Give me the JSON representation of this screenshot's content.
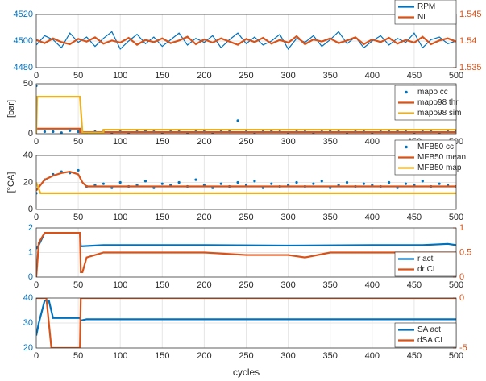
{
  "chart_data": [
    {
      "type": "line",
      "xlim": [
        0,
        500
      ],
      "xticks": [
        0,
        50,
        100,
        150,
        200,
        250,
        300,
        350,
        400,
        450,
        500
      ],
      "ylim": [
        4480,
        4520
      ],
      "yticks": [
        4480,
        4500,
        4520
      ],
      "y2lim": [
        1.535,
        1.545
      ],
      "y2ticks": [
        1.535,
        1.54,
        1.545
      ],
      "ycolor": "#0072bd",
      "y2color": "#d95319",
      "grid": true,
      "legend": "upper right",
      "x": [
        0,
        10,
        20,
        30,
        40,
        50,
        60,
        70,
        80,
        90,
        100,
        110,
        120,
        130,
        140,
        150,
        160,
        170,
        180,
        190,
        200,
        210,
        220,
        230,
        240,
        250,
        260,
        270,
        280,
        290,
        300,
        310,
        320,
        330,
        340,
        350,
        360,
        370,
        380,
        390,
        400,
        410,
        420,
        430,
        440,
        450,
        460,
        470,
        480,
        490,
        500
      ],
      "series": [
        {
          "name": "RPM",
          "color": "#0072bd",
          "values": [
            4497,
            4504,
            4501,
            4495,
            4506,
            4499,
            4503,
            4496,
            4502,
            4507,
            4494,
            4500,
            4505,
            4498,
            4503,
            4496,
            4501,
            4506,
            4497,
            4502,
            4499,
            4504,
            4495,
            4501,
            4506,
            4498,
            4503,
            4497,
            4500,
            4505,
            4494,
            4502,
            4499,
            4504,
            4496,
            4501,
            4507,
            4498,
            4503,
            4495,
            4500,
            4504,
            4497,
            4502,
            4499,
            4506,
            4495,
            4501,
            4503,
            4498,
            4500
          ]
        },
        {
          "name": "NL",
          "color": "#d95319",
          "axis": "y2",
          "values": [
            1.5402,
            1.5396,
            1.5405,
            1.5398,
            1.5394,
            1.5404,
            1.5399,
            1.5407,
            1.5395,
            1.5401,
            1.5397,
            1.5406,
            1.5393,
            1.5402,
            1.5398,
            1.5405,
            1.5396,
            1.5401,
            1.5408,
            1.5394,
            1.5403,
            1.5397,
            1.5405,
            1.5399,
            1.5393,
            1.5404,
            1.5398,
            1.5406,
            1.5395,
            1.5402,
            1.5397,
            1.5409,
            1.5394,
            1.5403,
            1.5399,
            1.5405,
            1.5396,
            1.5401,
            1.5407,
            1.5394,
            1.5403,
            1.5398,
            1.5406,
            1.5395,
            1.5402,
            1.5397,
            1.5408,
            1.5394,
            1.5401,
            1.5405,
            1.5399
          ]
        }
      ]
    },
    {
      "type": "line",
      "xlim": [
        0,
        500
      ],
      "xticks": [
        0,
        50,
        100,
        150,
        200,
        250,
        300,
        350,
        400,
        450,
        500
      ],
      "ylim": [
        0,
        50
      ],
      "yticks": [
        0,
        50
      ],
      "ycolor": "#262626",
      "ylabel": "[bar]",
      "grid": true,
      "legend": "upper right",
      "series": [
        {
          "name": "mapo cc",
          "type": "scatter",
          "color": "#0072bd",
          "x": [
            0,
            10,
            20,
            30,
            40,
            50,
            60,
            70,
            80,
            90,
            100,
            110,
            120,
            130,
            140,
            150,
            160,
            170,
            180,
            190,
            200,
            210,
            220,
            230,
            240,
            250,
            260,
            270,
            280,
            290,
            300,
            310,
            320,
            330,
            340,
            350,
            360,
            370,
            380,
            390,
            400,
            410,
            420,
            430,
            440,
            450,
            460,
            470,
            480,
            490,
            500
          ],
          "values": [
            48,
            2,
            2,
            1,
            3,
            2,
            1,
            2,
            2,
            1,
            2,
            1,
            2,
            3,
            2,
            1,
            2,
            2,
            1,
            2,
            2,
            1,
            2,
            2,
            13,
            2,
            1,
            2,
            3,
            2,
            1,
            2,
            2,
            1,
            2,
            3,
            2,
            1,
            2,
            2,
            1,
            2,
            2,
            3,
            2,
            1,
            2,
            2,
            1,
            2,
            2
          ]
        },
        {
          "name": "mapo98 thr",
          "color": "#d95319",
          "x": [
            0,
            52,
            52,
            500
          ],
          "values": [
            5,
            5,
            1.5,
            1.5
          ]
        },
        {
          "name": "mapo98 sim",
          "color": "#edb120",
          "x": [
            0,
            1,
            52,
            55,
            80,
            80,
            500
          ],
          "values": [
            0,
            37,
            37,
            1,
            1,
            4,
            4
          ]
        }
      ]
    },
    {
      "type": "line",
      "xlim": [
        0,
        500
      ],
      "xticks": [
        0,
        50,
        100,
        150,
        200,
        250,
        300,
        350,
        400,
        450,
        500
      ],
      "ylim": [
        0,
        40
      ],
      "yticks": [
        0,
        20,
        40
      ],
      "ycolor": "#262626",
      "ylabel": "[°CA]",
      "grid": true,
      "legend": "upper right",
      "series": [
        {
          "name": "MFB50 cc",
          "type": "scatter",
          "color": "#0072bd",
          "x": [
            0,
            10,
            20,
            30,
            40,
            50,
            60,
            70,
            80,
            90,
            100,
            110,
            120,
            130,
            140,
            150,
            160,
            170,
            180,
            190,
            200,
            210,
            220,
            230,
            240,
            250,
            260,
            270,
            280,
            290,
            300,
            310,
            320,
            330,
            340,
            350,
            360,
            370,
            380,
            390,
            400,
            410,
            420,
            430,
            440,
            450,
            460,
            470,
            480,
            490,
            500
          ],
          "values": [
            12,
            22,
            26,
            28,
            27,
            29,
            17,
            18,
            19,
            16,
            20,
            17,
            18,
            21,
            16,
            19,
            18,
            20,
            17,
            22,
            18,
            16,
            19,
            17,
            20,
            18,
            21,
            16,
            19,
            17,
            18,
            20,
            17,
            19,
            21,
            16,
            18,
            20,
            17,
            19,
            18,
            17,
            20,
            16,
            19,
            18,
            21,
            17,
            19,
            18,
            17
          ]
        },
        {
          "name": "MFB50 mean",
          "color": "#d95319",
          "x": [
            0,
            5,
            10,
            20,
            30,
            40,
            50,
            55,
            60,
            80,
            100,
            500
          ],
          "values": [
            14,
            18,
            22,
            25,
            27,
            28,
            26,
            20,
            17,
            17,
            17,
            17
          ]
        },
        {
          "name": "MFB50 map",
          "color": "#edb120",
          "x": [
            0,
            5,
            500
          ],
          "values": [
            20,
            12,
            12
          ]
        }
      ]
    },
    {
      "type": "line",
      "xlim": [
        0,
        500
      ],
      "xticks": [
        0,
        50,
        100,
        150,
        200,
        250,
        300,
        350,
        400,
        450,
        500
      ],
      "ylim": [
        0,
        2
      ],
      "yticks": [
        0,
        1,
        2
      ],
      "y2lim": [
        0,
        1
      ],
      "y2ticks": [
        0,
        0.5,
        1
      ],
      "ycolor": "#0072bd",
      "y2color": "#d95319",
      "grid": true,
      "legend": "lower right",
      "series": [
        {
          "name": "r act",
          "color": "#0072bd",
          "x": [
            0,
            3,
            10,
            52,
            53,
            80,
            100,
            200,
            300,
            400,
            460,
            490,
            500
          ],
          "values": [
            1.15,
            1.3,
            1.8,
            1.8,
            1.25,
            1.3,
            1.3,
            1.3,
            1.28,
            1.3,
            1.3,
            1.35,
            1.3
          ]
        },
        {
          "name": "dr CL",
          "color": "#d95319",
          "axis": "y2",
          "x": [
            0,
            3,
            10,
            52,
            53,
            55,
            60,
            80,
            100,
            150,
            200,
            250,
            300,
            320,
            350,
            400,
            450,
            500
          ],
          "values": [
            0,
            0.7,
            0.9,
            0.9,
            0.1,
            0.1,
            0.4,
            0.5,
            0.5,
            0.5,
            0.5,
            0.45,
            0.45,
            0.4,
            0.5,
            0.5,
            0.5,
            0.5
          ]
        }
      ]
    },
    {
      "type": "line",
      "xlim": [
        0,
        500
      ],
      "xticks": [
        0,
        50,
        100,
        150,
        200,
        250,
        300,
        350,
        400,
        450,
        500
      ],
      "ylim": [
        20,
        40
      ],
      "yticks": [
        20,
        30,
        40
      ],
      "y2lim": [
        -5,
        0
      ],
      "y2ticks": [
        -5,
        0
      ],
      "ycolor": "#0072bd",
      "y2color": "#d95319",
      "grid": true,
      "legend": "lower right",
      "xlabel": "cycles",
      "series": [
        {
          "name": "SA act",
          "color": "#0072bd",
          "x": [
            0,
            3,
            10,
            15,
            20,
            52,
            53,
            60,
            80,
            500
          ],
          "values": [
            25,
            30,
            39,
            39,
            32,
            32,
            31,
            31.5,
            31.5,
            31.5
          ]
        },
        {
          "name": "dSA CL",
          "color": "#d95319",
          "axis": "y2",
          "x": [
            0,
            12,
            18,
            52,
            53,
            500
          ],
          "values": [
            0,
            0,
            -5,
            -5,
            0,
            0
          ]
        }
      ]
    }
  ]
}
